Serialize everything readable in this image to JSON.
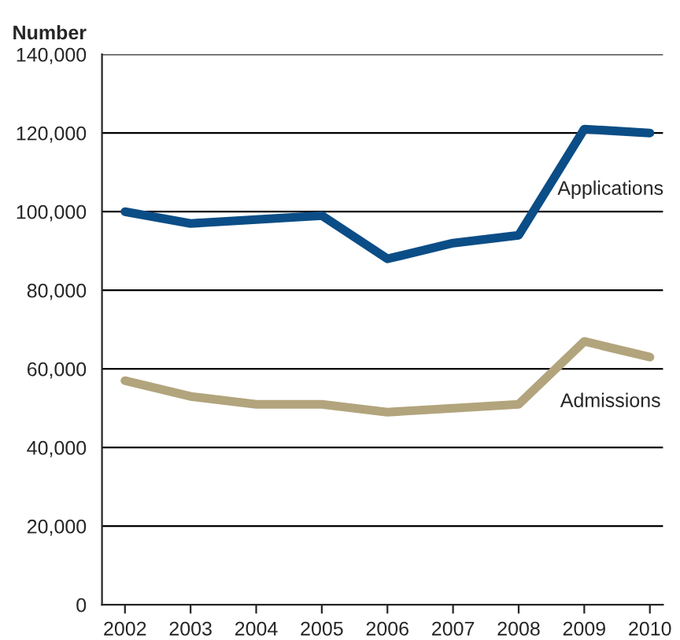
{
  "chart_data": {
    "type": "line",
    "ylabel": "Number",
    "categories": [
      "2002",
      "2003",
      "2004",
      "2005",
      "2006",
      "2007",
      "2008",
      "2009",
      "2010"
    ],
    "series": [
      {
        "name": "Applications",
        "color": "#0b4d86",
        "values": [
          100000,
          97000,
          98000,
          99000,
          88000,
          92000,
          94000,
          121000,
          120000
        ]
      },
      {
        "name": "Admissions",
        "color": "#b2a47c",
        "values": [
          57000,
          53000,
          51000,
          51000,
          49000,
          50000,
          51000,
          67000,
          63000
        ]
      }
    ],
    "ylim": [
      0,
      140000
    ],
    "yticks": [
      {
        "value": 0,
        "label": "0"
      },
      {
        "value": 20000,
        "label": "20,000"
      },
      {
        "value": 40000,
        "label": "40,000"
      },
      {
        "value": 60000,
        "label": "60,000"
      },
      {
        "value": 80000,
        "label": "80,000"
      },
      {
        "value": 100000,
        "label": "100,000"
      },
      {
        "value": 120000,
        "label": "120,000"
      },
      {
        "value": 140000,
        "label": "140,000"
      }
    ],
    "grid": "y",
    "legend": false,
    "marker": "none",
    "line_style": "solid"
  }
}
